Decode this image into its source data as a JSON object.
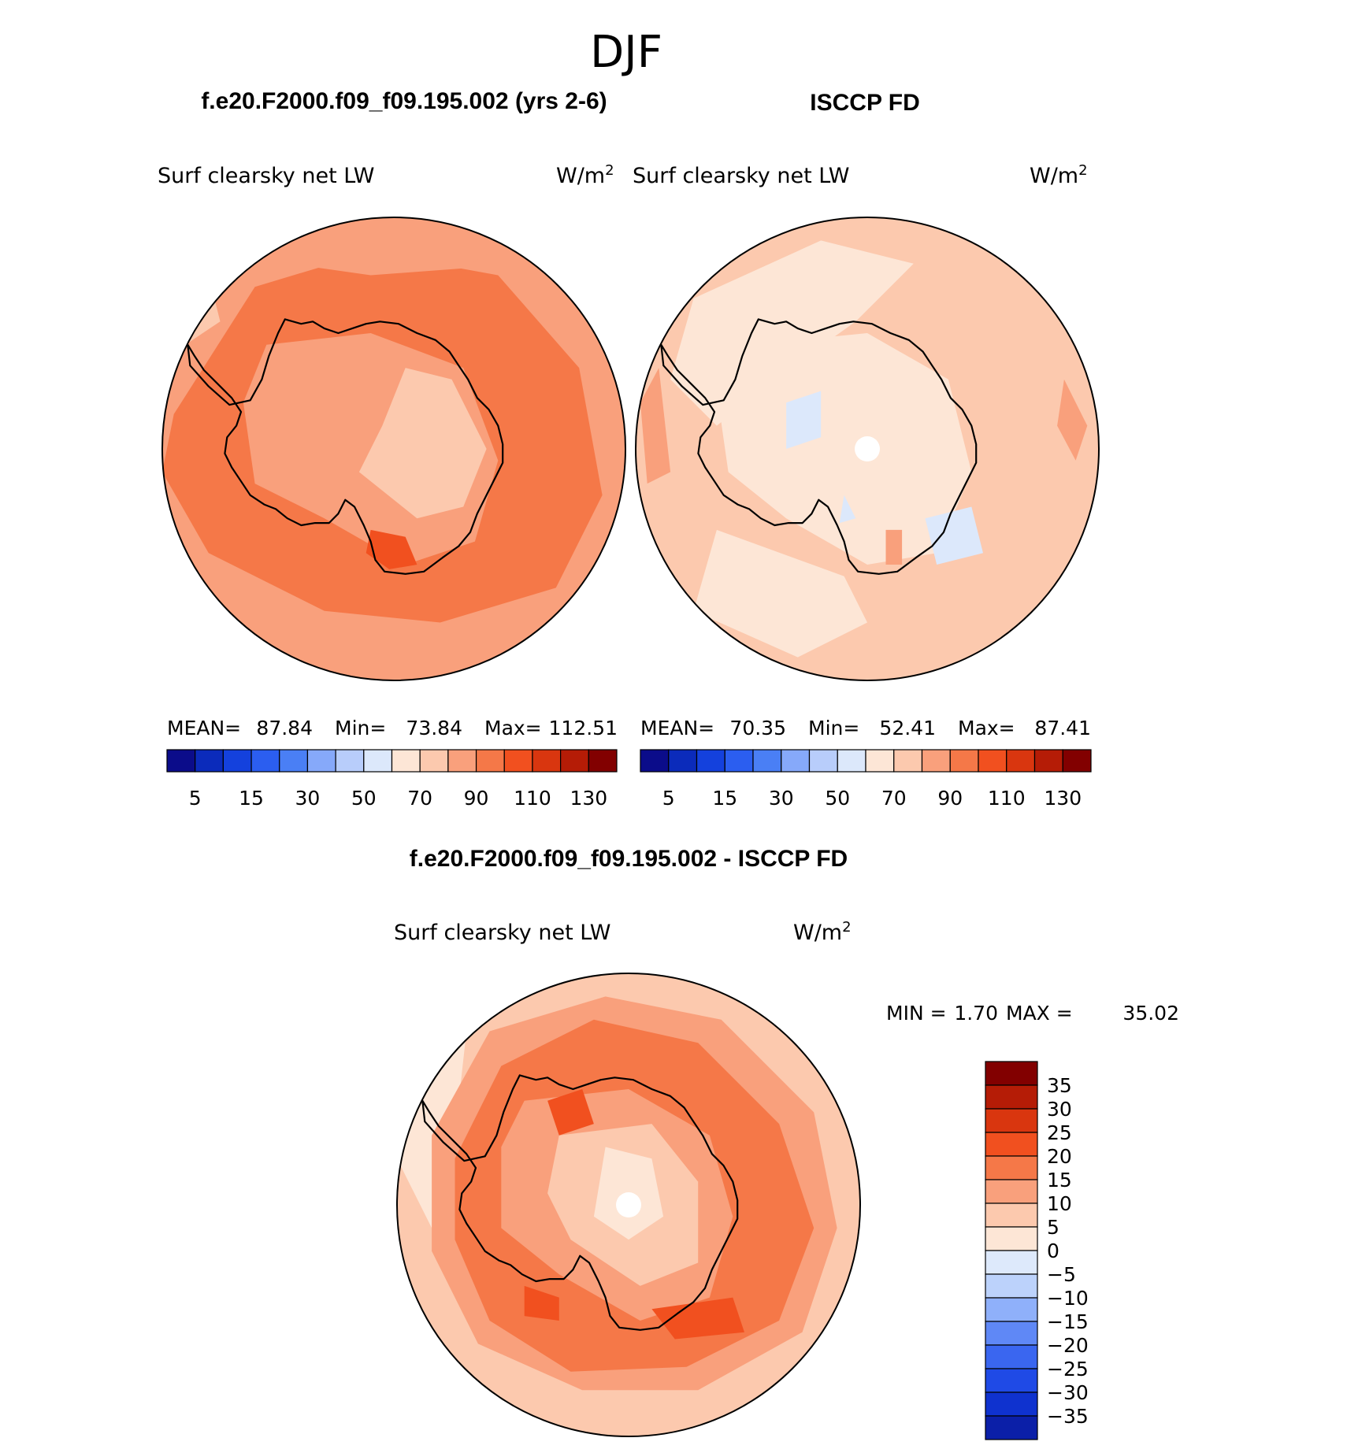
{
  "page_title": "DJF",
  "palette": {
    "land_outline": "#000000",
    "pole_hole": "#ffffff",
    "outline": "#000000"
  },
  "chart_data": [
    {
      "type": "heatmap",
      "projection": "south-polar-stereographic",
      "case_title": "f.e20.F2000.f09_f09.195.002 (yrs 2-6)",
      "variable": "Surf clearsky net LW",
      "units_base": "W/m",
      "units_exp": "2",
      "stats": {
        "mean_label": "MEAN=",
        "mean": "87.84",
        "min_label": "Min=",
        "min": "73.84",
        "max_label": "Max=",
        "max": "112.51"
      },
      "colorbar": {
        "orientation": "horizontal",
        "levels": [
          5,
          10,
          15,
          20,
          30,
          40,
          50,
          60,
          70,
          80,
          90,
          100,
          110,
          120,
          130
        ],
        "tick_labels": [
          "5",
          "15",
          "30",
          "50",
          "70",
          "90",
          "110",
          "130"
        ],
        "colors": [
          "#0b0c8a",
          "#0b2bbb",
          "#1441dd",
          "#2b5ef0",
          "#4a7ff5",
          "#86a9fa",
          "#b8cdfb",
          "#dce8fb",
          "#fde6d6",
          "#fcc9ae",
          "#f9a07c",
          "#f57848",
          "#f1501f",
          "#d9360f",
          "#b51c06",
          "#820000"
        ]
      },
      "field_description": "Ocean mostly 90-100 (#f57848) near continent, 80-90 (#f9a07c) outer ring; interior 70-80 (#fcc9ae) plateau; peak 100-110 (#f1501f) near Ross Sea coast"
    },
    {
      "type": "heatmap",
      "projection": "south-polar-stereographic",
      "case_title": "ISCCP FD",
      "variable": "Surf clearsky net LW",
      "units_base": "W/m",
      "units_exp": "2",
      "stats": {
        "mean_label": "MEAN=",
        "mean": "70.35",
        "min_label": "Min=",
        "min": "52.41",
        "max_label": "Max=",
        "max": "87.41"
      },
      "colorbar": {
        "orientation": "horizontal",
        "levels": [
          5,
          10,
          15,
          20,
          30,
          40,
          50,
          60,
          70,
          80,
          90,
          100,
          110,
          120,
          130
        ],
        "tick_labels": [
          "5",
          "15",
          "30",
          "50",
          "70",
          "90",
          "110",
          "130"
        ],
        "colors": [
          "#0b0c8a",
          "#0b2bbb",
          "#1441dd",
          "#2b5ef0",
          "#4a7ff5",
          "#86a9fa",
          "#b8cdfb",
          "#dce8fb",
          "#fde6d6",
          "#fcc9ae",
          "#f9a07c",
          "#f57848",
          "#f1501f",
          "#d9360f",
          "#b51c06",
          "#820000"
        ]
      },
      "field_description": "Mostly 70-80 (#fcc9ae) ocean, 60-70 (#fde6d6) interior and patches, small 50-60 (#dce8fb) patches, a few 80-90 (#f9a07c) spots"
    },
    {
      "type": "heatmap",
      "projection": "south-polar-stereographic",
      "case_title": "f.e20.F2000.f09_f09.195.002 - ISCCP FD",
      "variable": "Surf clearsky net LW",
      "units_base": "W/m",
      "units_exp": "2",
      "stats": {
        "min_label": "MIN =",
        "min": "1.70",
        "max_label": "MAX =",
        "max": "35.02"
      },
      "colorbar": {
        "orientation": "vertical",
        "levels": [
          -35,
          -30,
          -25,
          -20,
          -15,
          -10,
          -5,
          0,
          5,
          10,
          15,
          20,
          25,
          30,
          35
        ],
        "tick_labels": [
          "35",
          "30",
          "25",
          "20",
          "15",
          "10",
          "5",
          "0",
          "−5",
          "−10",
          "−15",
          "−20",
          "−25",
          "−30",
          "−35"
        ],
        "colors": [
          "#0b0c6e",
          "#0b1fa8",
          "#0f32cf",
          "#1f4ae6",
          "#3a66f0",
          "#5f88f6",
          "#8fb0fa",
          "#bcd2fb",
          "#dde9fb",
          "#fde6d6",
          "#fcc9ae",
          "#f9a07c",
          "#f57848",
          "#f1501f",
          "#d9360f",
          "#b51c06",
          "#820000"
        ]
      },
      "field_description": "Differences mostly 15-25 over ocean ring (#f57848/#f1501f), 5-15 interior and outer rim, local maxima 25-35 (#d9360f) near coasts"
    }
  ]
}
